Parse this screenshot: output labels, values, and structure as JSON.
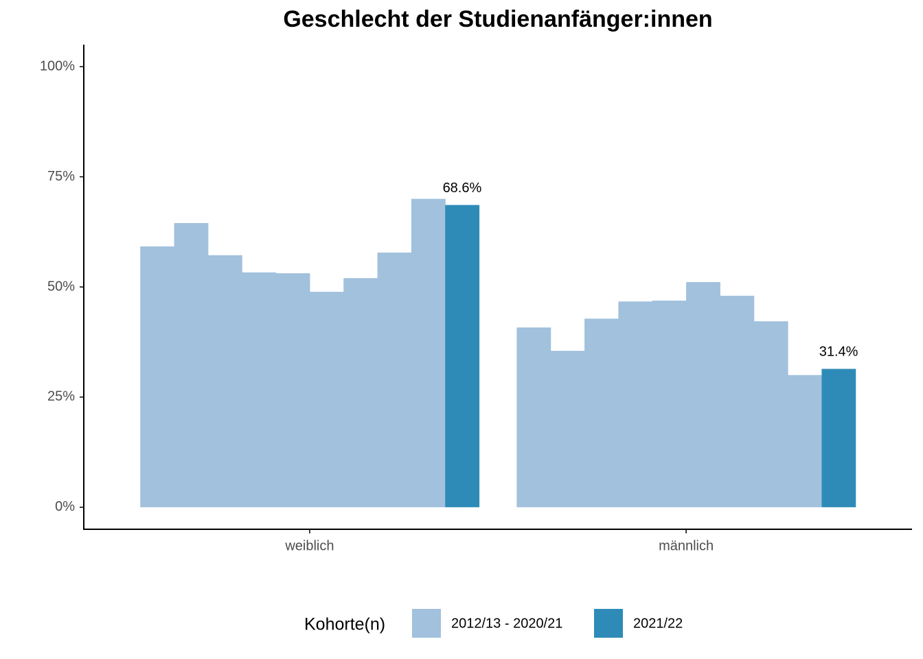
{
  "chart_data": {
    "type": "bar",
    "title": "Geschlecht der Studienanfänger:innen",
    "categories": [
      "weiblich",
      "männlich"
    ],
    "legend_title": "Kohorte(n)",
    "series": [
      {
        "name": "2012/13 - 2020/21",
        "color": "#a1c1dd",
        "values": [
          [
            59.2,
            64.5,
            57.2,
            53.3,
            53.1,
            48.9,
            52.0,
            57.8,
            70.0
          ],
          [
            40.8,
            35.5,
            42.8,
            46.7,
            46.9,
            51.1,
            48.0,
            42.2,
            30.0
          ]
        ]
      },
      {
        "name": "2021/22",
        "color": "#2e8bb7",
        "values": [
          68.6,
          31.4
        ],
        "value_labels": [
          "68.6%",
          "31.4%"
        ]
      }
    ],
    "ylim": [
      -5,
      105
    ],
    "yticks": [
      {
        "value": 0,
        "label": "0%"
      },
      {
        "value": 25,
        "label": "25%"
      },
      {
        "value": 50,
        "label": "50%"
      },
      {
        "value": 75,
        "label": "75%"
      },
      {
        "value": 100,
        "label": "100%"
      }
    ],
    "grid": false,
    "legend_position": "bottom"
  }
}
